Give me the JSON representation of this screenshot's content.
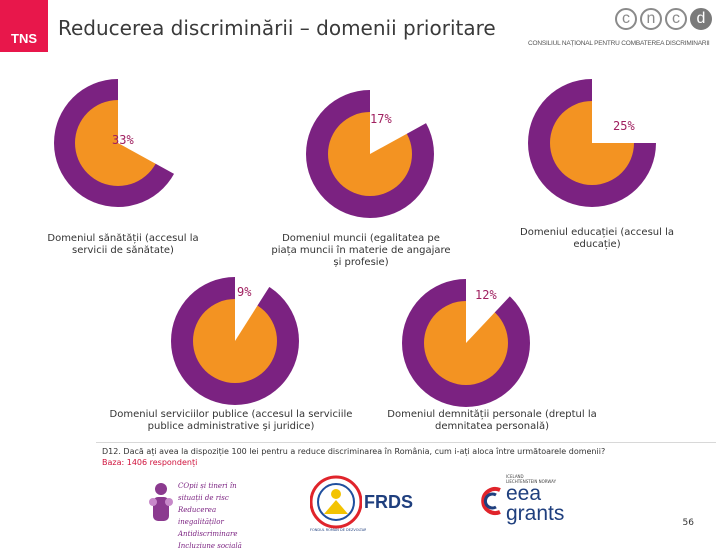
{
  "header": {
    "logo_text": "TNS",
    "title": "Reducerea discriminării – domenii prioritare",
    "cncd_letters": [
      "c",
      "n",
      "c",
      "d"
    ],
    "cncd_subtitle": "CONSILIUL NAȚIONAL PENTRU COMBATEREA DISCRIMINĂRII"
  },
  "colors": {
    "ring": "#7b2281",
    "inner": "#f39322",
    "slice": "#ffffff",
    "percent_text": "#a02060"
  },
  "chart_data": [
    {
      "type": "pie",
      "domain": "Domeniul sănătății (accesul la servicii de sănătate)",
      "value": 33,
      "label": "33%"
    },
    {
      "type": "pie",
      "domain": "Domeniul muncii (egalitatea pe piața muncii în materie de angajare și profesie)",
      "value": 17,
      "label": "17%"
    },
    {
      "type": "pie",
      "domain": "Domeniul educației (accesul la educație)",
      "value": 25,
      "label": "25%"
    },
    {
      "type": "pie",
      "domain": "Domeniul serviciilor publice (accesul la serviciile publice administrative și juridice)",
      "value": 9,
      "label": "9%"
    },
    {
      "type": "pie",
      "domain": "Domeniul demnității personale (dreptul la demnitatea personală)",
      "value": 12,
      "label": "12%"
    }
  ],
  "footer": {
    "question": "D12. Dacă ați avea la dispoziție 100 lei pentru a reduce discriminarea în România, cum i-ați aloca între următoarele domenii?",
    "base": "Baza: 1406 respondenți",
    "logo_cop_lines": [
      "COpii și tineri în situații de risc",
      "Reducerea inegalităților",
      "Antidiscriminare",
      "Incluziune socială"
    ],
    "logo_frds": "FRDS",
    "logo_frds_sub": "FONDUL ROMÂN DE DEZVOLTARE SOCIALĂ",
    "logo_eea_top": "ICELAND LIECHTENSTEIN NORWAY",
    "logo_eea_1": "eea",
    "logo_eea_2": "grants",
    "page_number": "56"
  }
}
